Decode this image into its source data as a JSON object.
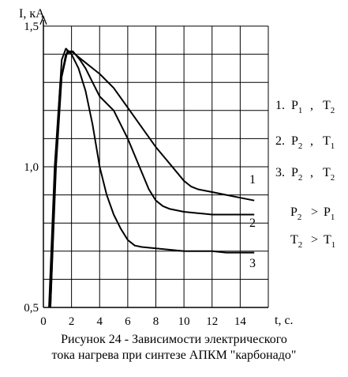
{
  "chart_data": {
    "type": "line",
    "ylabel": "I, кА",
    "xlabel": "t, с.",
    "xlim": [
      0,
      16
    ],
    "ylim": [
      0.5,
      1.5
    ],
    "x_ticks": [
      "0",
      "2",
      "4",
      "6",
      "8",
      "10",
      "12",
      "14"
    ],
    "y_ticks": [
      "0,5",
      "1,0",
      "1,5"
    ],
    "grid": true,
    "series": [
      {
        "name": "1",
        "x": [
          0.4,
          0.8,
          1.2,
          1.6,
          2.0,
          2.5,
          3.0,
          3.5,
          4.0,
          5.0,
          6.0,
          7.0,
          8.0,
          9.0,
          10.0,
          10.5,
          11.0,
          12.0,
          13.0,
          14.0,
          15.0
        ],
        "y": [
          0.5,
          1.0,
          1.3,
          1.4,
          1.41,
          1.39,
          1.37,
          1.35,
          1.33,
          1.28,
          1.21,
          1.14,
          1.07,
          1.01,
          0.95,
          0.93,
          0.92,
          0.91,
          0.9,
          0.89,
          0.88
        ]
      },
      {
        "name": "2",
        "x": [
          0.5,
          0.9,
          1.3,
          1.7,
          2.1,
          2.6,
          3.0,
          3.5,
          4.0,
          5.0,
          6.0,
          7.0,
          7.5,
          8.0,
          8.5,
          9.0,
          10.0,
          11.0,
          12.0,
          13.0,
          14.0,
          15.0
        ],
        "y": [
          0.5,
          1.0,
          1.32,
          1.41,
          1.41,
          1.38,
          1.35,
          1.3,
          1.25,
          1.2,
          1.1,
          0.98,
          0.92,
          0.88,
          0.86,
          0.85,
          0.84,
          0.835,
          0.83,
          0.83,
          0.83,
          0.83
        ],
        "label_note": "curve 2 has a shoulder near t=4..5"
      },
      {
        "name": "3",
        "x": [
          0.5,
          0.9,
          1.3,
          1.6,
          2.0,
          2.5,
          3.0,
          3.5,
          4.0,
          4.5,
          5.0,
          5.5,
          6.0,
          6.5,
          7.0,
          8.0,
          9.0,
          10.0,
          11.0,
          12.0,
          13.0,
          14.0,
          15.0
        ],
        "y": [
          0.5,
          1.05,
          1.38,
          1.42,
          1.4,
          1.35,
          1.27,
          1.15,
          1.0,
          0.9,
          0.83,
          0.78,
          0.74,
          0.72,
          0.715,
          0.71,
          0.705,
          0.7,
          0.7,
          0.7,
          0.695,
          0.695,
          0.695
        ]
      }
    ],
    "legend": {
      "placement": "right",
      "items": [
        {
          "num": "1.",
          "a": "P",
          "a_sub": "1",
          "b": "T",
          "b_sub": "2"
        },
        {
          "num": "2.",
          "a": "P",
          "a_sub": "2",
          "b": "T",
          "b_sub": "1"
        },
        {
          "num": "3.",
          "a": "P",
          "a_sub": "2",
          "b": "T",
          "b_sub": "2"
        }
      ],
      "relations": [
        {
          "l": "P",
          "l_sub": "2",
          "op": ">",
          "r": "P",
          "r_sub": "1"
        },
        {
          "l": "T",
          "l_sub": "2",
          "op": ">",
          "r": "T",
          "r_sub": "1"
        }
      ]
    },
    "curve_labels": [
      "1",
      "2",
      "3"
    ]
  },
  "caption": {
    "line1": "Рисунок 24 - Зависимости электрического",
    "line2": "тока нагрева при синтезе АПКМ \"карбонадо\""
  }
}
